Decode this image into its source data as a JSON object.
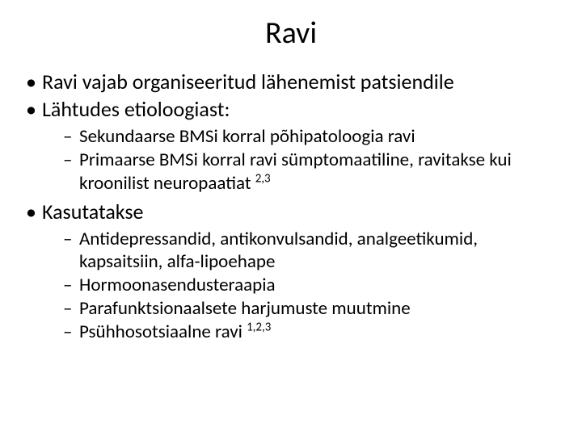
{
  "colors": {
    "background": "#ffffff",
    "text": "#000000"
  },
  "typography": {
    "font_family": "Calibri",
    "title_fontsize": 38,
    "level1_fontsize": 26,
    "level2_fontsize": 23
  },
  "slide": {
    "title": "Ravi",
    "bullets": {
      "b1": "Ravi vajab organiseeritud lähenemist patsiendile",
      "b2": "Lähtudes etioloogiast:",
      "b2_sub": {
        "s1": "Sekundaarse BMSi korral põhipatoloogia ravi",
        "s2a": "Primaarse BMSi korral ravi sümptomaatiline,  ravitakse kui kroonilist neuropaatiat ",
        "s2_sup": "2,3"
      },
      "b3": "Kasutatakse",
      "b3_sub": {
        "s1": "Antidepressandid, antikonvulsandid, analgeetikumid, kapsaitsiin, alfa-lipoehape",
        "s2": "Hormoonasendusteraapia",
        "s3": "Parafunktsionaalsete harjumuste muutmine",
        "s4a": "Psühhosotsiaalne ravi ",
        "s4_sup": "1,2,3"
      }
    }
  }
}
